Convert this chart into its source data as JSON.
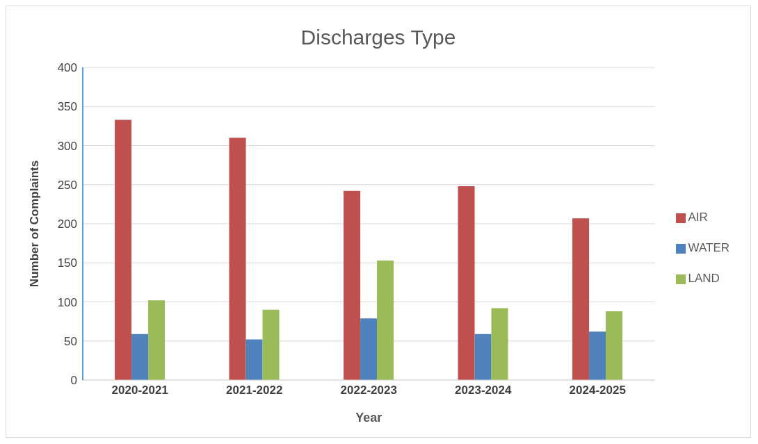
{
  "chart_data": {
    "type": "bar",
    "title": "Discharges Type",
    "xlabel": "Year",
    "ylabel": "Number of Complaints",
    "categories": [
      "2020-2021",
      "2021-2022",
      "2022-2023",
      "2023-2024",
      "2024-2025"
    ],
    "series": [
      {
        "name": "AIR",
        "color": "#c0504d",
        "values": [
          333,
          310,
          242,
          248,
          207
        ]
      },
      {
        "name": "WATER",
        "color": "#4f81bd",
        "values": [
          59,
          52,
          79,
          59,
          62
        ]
      },
      {
        "name": "LAND",
        "color": "#9bbb59",
        "values": [
          102,
          90,
          153,
          92,
          88
        ]
      }
    ],
    "ylim": [
      0,
      400
    ],
    "yticks": [
      0,
      50,
      100,
      150,
      200,
      250,
      300,
      350,
      400
    ],
    "grid": "y",
    "legend": "right"
  }
}
